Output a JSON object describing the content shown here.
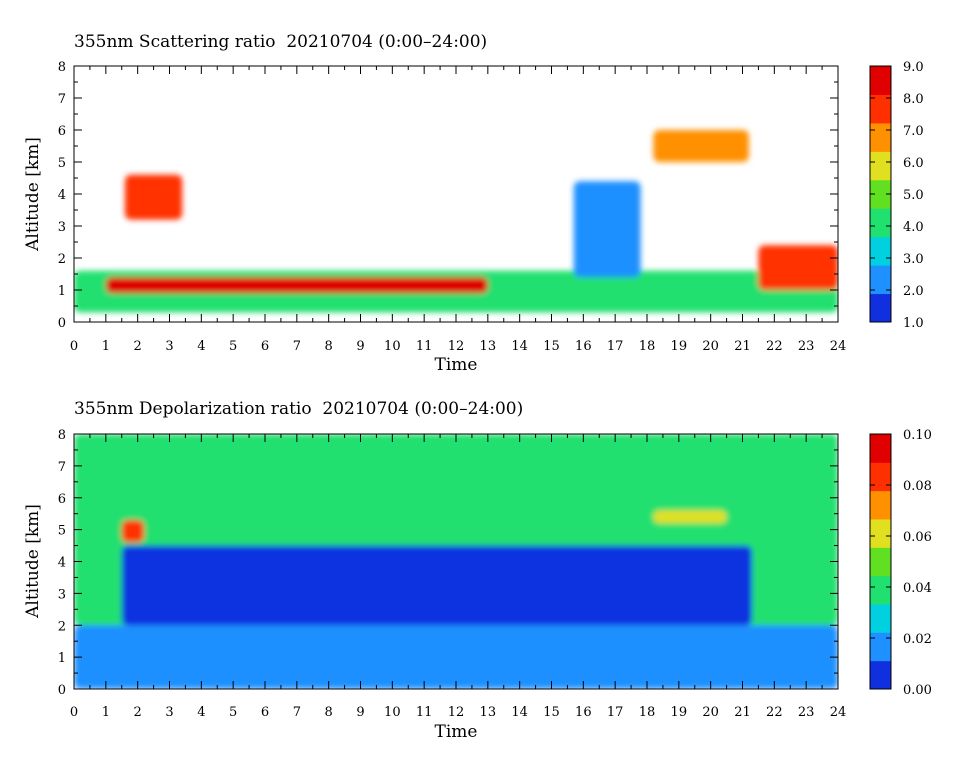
{
  "chart_data": [
    {
      "type": "heatmap",
      "title": "355nm Scattering ratio  20210704 (0:00–24:00)",
      "xlabel": "Time",
      "ylabel": "Altitude [km]",
      "xlim": [
        0,
        24
      ],
      "ylim": [
        0,
        8
      ],
      "x_ticks": [
        "0",
        "1",
        "2",
        "3",
        "4",
        "5",
        "6",
        "7",
        "8",
        "9",
        "10",
        "11",
        "12",
        "13",
        "14",
        "15",
        "16",
        "17",
        "18",
        "19",
        "20",
        "21",
        "22",
        "23",
        "24"
      ],
      "y_ticks": [
        "0",
        "1",
        "2",
        "3",
        "4",
        "5",
        "6",
        "7",
        "8"
      ],
      "colorbar": {
        "min": 1.0,
        "max": 9.0,
        "ticks": [
          "1.0",
          "2.0",
          "3.0",
          "4.0",
          "5.0",
          "6.0",
          "7.0",
          "8.0",
          "9.0"
        ],
        "colors": [
          "#1030e0",
          "#1e90ff",
          "#00d0e0",
          "#20e070",
          "#60e020",
          "#e0e020",
          "#ff9000",
          "#ff3000",
          "#e00000"
        ]
      },
      "features": [
        {
          "time": [
            0,
            24
          ],
          "alt": [
            0.3,
            1.6
          ],
          "value": 4.5
        },
        {
          "time": [
            1.0,
            13.0
          ],
          "alt": [
            0.9,
            1.4
          ],
          "value": 9.0
        },
        {
          "time": [
            1.6,
            3.4
          ],
          "alt": [
            3.2,
            4.6
          ],
          "value": 8.0
        },
        {
          "time": [
            15.7,
            17.8
          ],
          "alt": [
            1.4,
            4.4
          ],
          "value": 2.5
        },
        {
          "time": [
            18.2,
            21.2
          ],
          "alt": [
            5.0,
            6.0
          ],
          "value": 7.0
        },
        {
          "time": [
            21.5,
            24
          ],
          "alt": [
            1.0,
            2.4
          ],
          "value": 7.5
        }
      ]
    },
    {
      "type": "heatmap",
      "title": "355nm Depolarization ratio  20210704 (0:00–24:00)",
      "xlabel": "Time",
      "ylabel": "Altitude [km]",
      "xlim": [
        0,
        24
      ],
      "ylim": [
        0,
        8
      ],
      "x_ticks": [
        "0",
        "1",
        "2",
        "3",
        "4",
        "5",
        "6",
        "7",
        "8",
        "9",
        "10",
        "11",
        "12",
        "13",
        "14",
        "15",
        "16",
        "17",
        "18",
        "19",
        "20",
        "21",
        "22",
        "23",
        "24"
      ],
      "y_ticks": [
        "0",
        "1",
        "2",
        "3",
        "4",
        "5",
        "6",
        "7",
        "8"
      ],
      "colorbar": {
        "min": 0.0,
        "max": 0.1,
        "ticks": [
          "0.00",
          "0.02",
          "0.04",
          "0.06",
          "0.08",
          "0.10"
        ],
        "colors": [
          "#1030e0",
          "#1e90ff",
          "#00d0e0",
          "#20e070",
          "#60e020",
          "#e0e020",
          "#ff9000",
          "#ff3000",
          "#e00000"
        ]
      },
      "features": [
        {
          "time": [
            0,
            24
          ],
          "alt": [
            2.0,
            8.0
          ],
          "value": 0.037
        },
        {
          "time": [
            0,
            24
          ],
          "alt": [
            0.0,
            2.0
          ],
          "value": 0.015
        },
        {
          "time": [
            1.5,
            21.3
          ],
          "alt": [
            2.0,
            4.5
          ],
          "value": 0.005
        },
        {
          "time": [
            1.5,
            2.2
          ],
          "alt": [
            4.6,
            5.3
          ],
          "value": 0.08
        },
        {
          "time": [
            18.2,
            20.5
          ],
          "alt": [
            5.2,
            5.6
          ],
          "value": 0.06
        }
      ]
    }
  ]
}
